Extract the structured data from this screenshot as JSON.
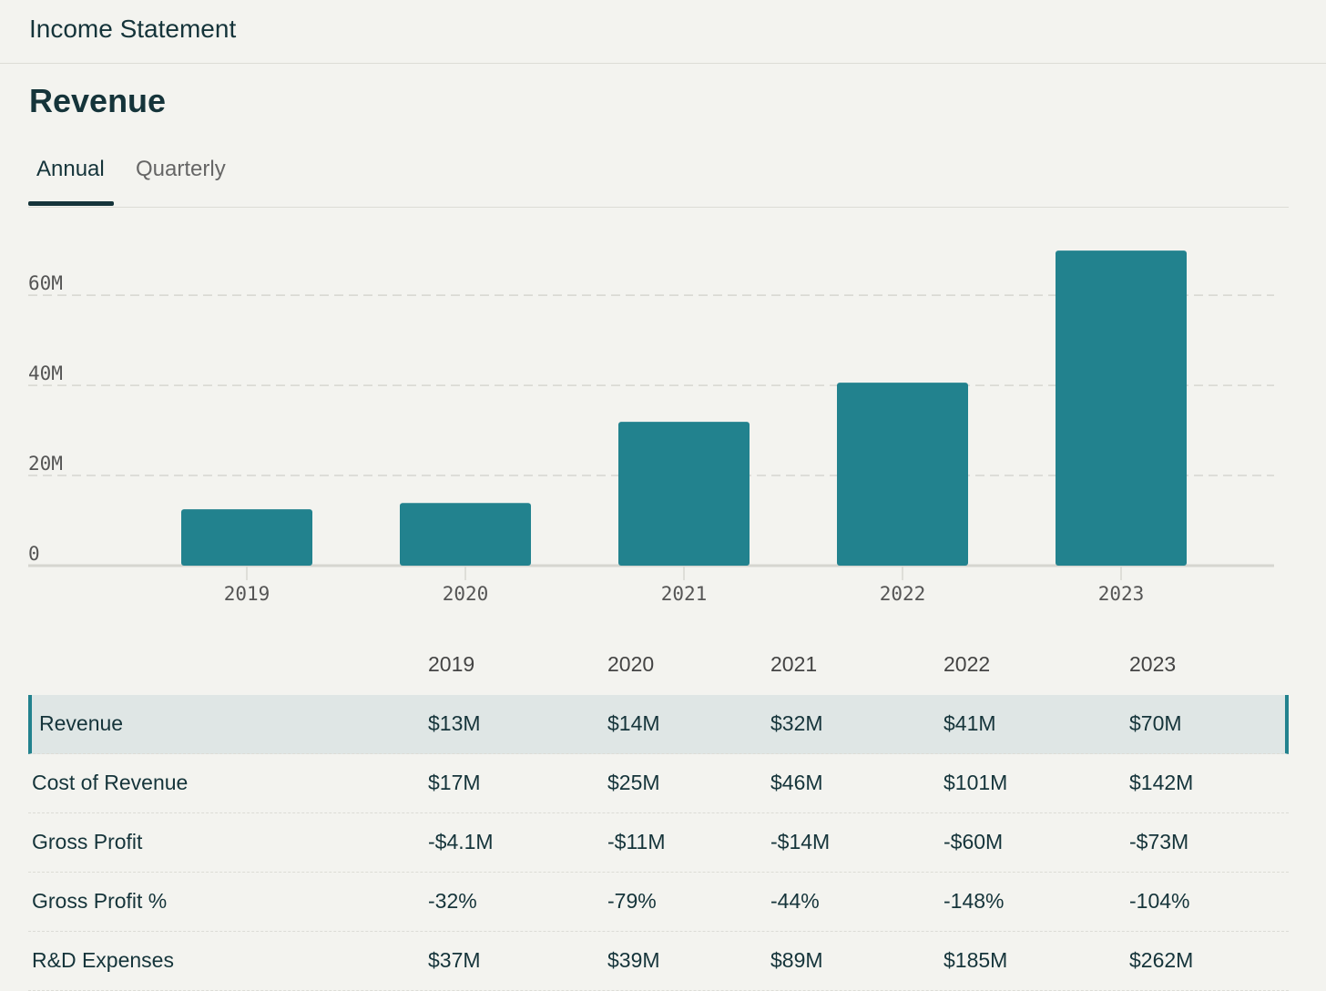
{
  "header": {
    "title": "Income Statement"
  },
  "section": {
    "title": "Revenue",
    "tabs": [
      "Annual",
      "Quarterly"
    ]
  },
  "chart_data": {
    "type": "bar",
    "categories": [
      "2019",
      "2020",
      "2021",
      "2022",
      "2023"
    ],
    "values": [
      12.5,
      13.9,
      31.9,
      40.6,
      69.9
    ],
    "color": "#22828e",
    "ylim": [
      0,
      77
    ],
    "yticks": [
      0,
      {
        "value": 20,
        "label": "20M"
      },
      {
        "value": 40,
        "label": "40M"
      },
      {
        "value": 60,
        "label": "60M"
      }
    ],
    "grid": true
  },
  "table": {
    "columns": [
      "2019",
      "2020",
      "2021",
      "2022",
      "2023"
    ],
    "rows": [
      {
        "label": "Revenue",
        "cells": [
          "$13M",
          "$14M",
          "$32M",
          "$41M",
          "$70M"
        ]
      },
      {
        "label": "Cost of Revenue",
        "cells": [
          "$17M",
          "$25M",
          "$46M",
          "$101M",
          "$142M"
        ]
      },
      {
        "label": "Gross Profit",
        "cells": [
          "-$4.1M",
          "-$11M",
          "-$14M",
          "-$60M",
          "-$73M"
        ]
      },
      {
        "label": "Gross Profit %",
        "cells": [
          "-32%",
          "-79%",
          "-44%",
          "-148%",
          "-104%"
        ]
      },
      {
        "label": "R&D Expenses",
        "cells": [
          "$37M",
          "$39M",
          "$89M",
          "$185M",
          "$262M"
        ]
      }
    ]
  }
}
